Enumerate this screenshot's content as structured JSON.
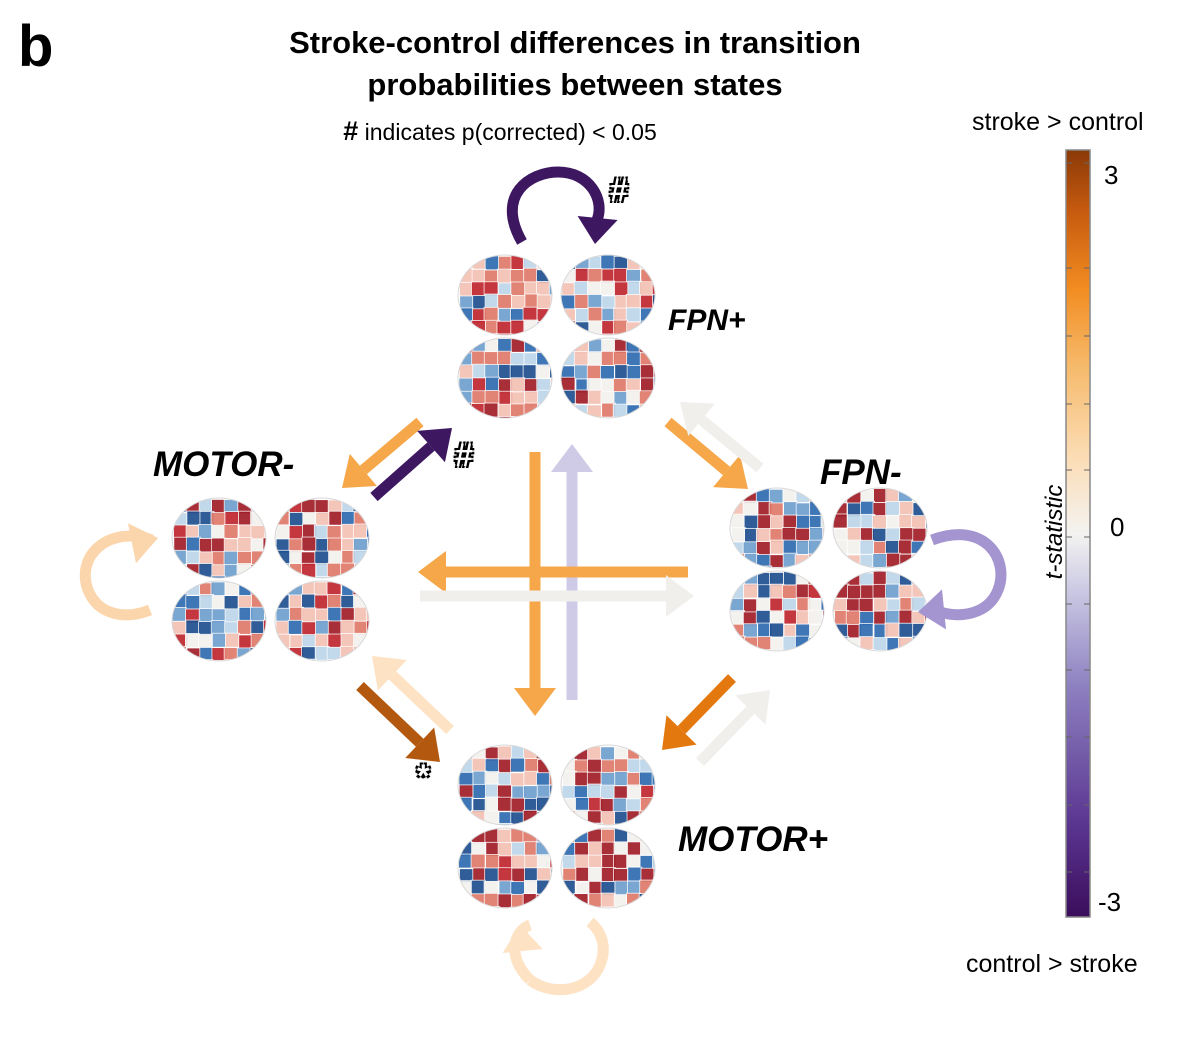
{
  "panel_letter": "b",
  "title": {
    "line1": "Stroke-control differences in transition",
    "line2": "probabilities between states"
  },
  "significance_note": {
    "symbol": "#",
    "text": "indicates p(corrected) < 0.05"
  },
  "states": {
    "fpn_plus": "FPN+",
    "fpn_minus": "FPN-",
    "motor_plus": "MOTOR+",
    "motor_minus": "MOTOR-"
  },
  "markers": {
    "fpn_plus_self": "#",
    "motor_minus_to_fpn_plus": "#",
    "motor_minus_to_motor_plus": "*"
  },
  "colorbar": {
    "top_label": "stroke > control",
    "bottom_label": "control > stroke",
    "axis_label": "t-statistic",
    "tick_max": "3",
    "tick_mid": "0",
    "tick_min": "-3",
    "stops": [
      "#3b0d5c",
      "#5a3590",
      "#8d80c0",
      "#c8c6e2",
      "#f4f3f1",
      "#fbdcb4",
      "#f6b96a",
      "#f28c20",
      "#c75a0f",
      "#8a3a08"
    ]
  },
  "colors": {
    "dark_purple": "#3d1760",
    "purple": "#a495d0",
    "light_purple": "#cfcbe6",
    "near_white": "#f1efec",
    "very_light_orange": "#fde2c4",
    "light_orange": "#fbd6ad",
    "orange": "#f5a74a",
    "deep_orange": "#e3780f",
    "brown_orange": "#b2580f",
    "brain_red": "#c0262f",
    "brain_blue": "#2e6bb0",
    "brain_white": "#f2f1ee"
  }
}
